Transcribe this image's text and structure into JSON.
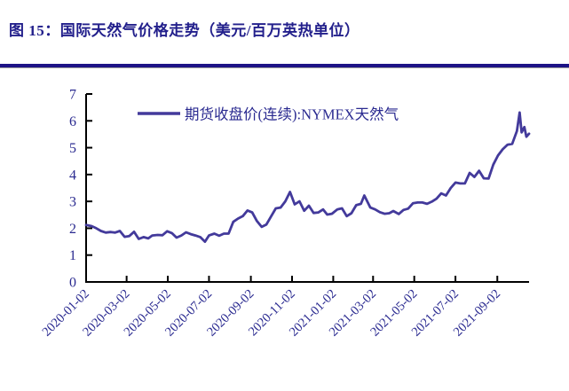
{
  "title": "图 15：国际天然气价格走势（美元/百万英热单位）",
  "colors": {
    "title_text": "#23208c",
    "divider": "#1d1386",
    "axis": "#000000",
    "tick_label": "#2a2a90",
    "series_line": "#433a9b"
  },
  "chart_data": {
    "type": "line",
    "title": "国际天然气价格走势（美元/百万英热单位）",
    "legend_position": "top",
    "grid": false,
    "ylim": [
      0,
      7
    ],
    "yticks": [
      0,
      1,
      2,
      3,
      4,
      5,
      6,
      7
    ],
    "xtick_labels": [
      "2020-01-02",
      "2020-03-02",
      "2020-05-02",
      "2020-07-02",
      "2020-09-02",
      "2020-11-02",
      "2021-01-02",
      "2021-03-02",
      "2021-05-02",
      "2021-07-02",
      "2021-09-02"
    ],
    "series": [
      {
        "name": "期货收盘价(连续):NYMEX天然气",
        "color": "#433a9b",
        "x": [
          "2020-01-02",
          "2020-01-10",
          "2020-01-17",
          "2020-01-24",
          "2020-01-31",
          "2020-02-07",
          "2020-02-14",
          "2020-02-21",
          "2020-02-28",
          "2020-03-06",
          "2020-03-13",
          "2020-03-20",
          "2020-03-27",
          "2020-04-03",
          "2020-04-09",
          "2020-04-17",
          "2020-04-24",
          "2020-05-01",
          "2020-05-08",
          "2020-05-15",
          "2020-05-22",
          "2020-05-29",
          "2020-06-05",
          "2020-06-12",
          "2020-06-19",
          "2020-06-26",
          "2020-07-02",
          "2020-07-10",
          "2020-07-17",
          "2020-07-24",
          "2020-07-31",
          "2020-08-07",
          "2020-08-14",
          "2020-08-21",
          "2020-08-28",
          "2020-09-04",
          "2020-09-11",
          "2020-09-18",
          "2020-09-25",
          "2020-10-02",
          "2020-10-09",
          "2020-10-16",
          "2020-10-23",
          "2020-10-30",
          "2020-11-06",
          "2020-11-13",
          "2020-11-20",
          "2020-11-27",
          "2020-12-04",
          "2020-12-11",
          "2020-12-18",
          "2020-12-24",
          "2020-12-31",
          "2021-01-08",
          "2021-01-15",
          "2021-01-22",
          "2021-01-29",
          "2021-02-05",
          "2021-02-12",
          "2021-02-17",
          "2021-02-26",
          "2021-03-05",
          "2021-03-12",
          "2021-03-19",
          "2021-03-26",
          "2021-04-01",
          "2021-04-09",
          "2021-04-16",
          "2021-04-23",
          "2021-04-30",
          "2021-05-07",
          "2021-05-14",
          "2021-05-21",
          "2021-05-28",
          "2021-06-04",
          "2021-06-11",
          "2021-06-18",
          "2021-06-25",
          "2021-07-02",
          "2021-07-09",
          "2021-07-16",
          "2021-07-23",
          "2021-07-30",
          "2021-08-06",
          "2021-08-13",
          "2021-08-20",
          "2021-08-27",
          "2021-09-03",
          "2021-09-10",
          "2021-09-17",
          "2021-09-24",
          "2021-10-01",
          "2021-10-05",
          "2021-10-08",
          "2021-10-12",
          "2021-10-15",
          "2021-10-19"
        ],
        "values": [
          2.12,
          2.08,
          2.0,
          1.9,
          1.84,
          1.86,
          1.84,
          1.9,
          1.68,
          1.71,
          1.87,
          1.6,
          1.67,
          1.62,
          1.73,
          1.75,
          1.74,
          1.89,
          1.82,
          1.65,
          1.73,
          1.85,
          1.78,
          1.73,
          1.67,
          1.5,
          1.73,
          1.8,
          1.72,
          1.8,
          1.8,
          2.24,
          2.36,
          2.45,
          2.66,
          2.59,
          2.27,
          2.05,
          2.14,
          2.44,
          2.74,
          2.77,
          3.0,
          3.35,
          2.89,
          3.0,
          2.65,
          2.84,
          2.57,
          2.59,
          2.7,
          2.51,
          2.54,
          2.7,
          2.74,
          2.45,
          2.56,
          2.86,
          2.91,
          3.22,
          2.77,
          2.7,
          2.6,
          2.54,
          2.56,
          2.64,
          2.53,
          2.68,
          2.73,
          2.93,
          2.96,
          2.96,
          2.91,
          2.99,
          3.1,
          3.3,
          3.22,
          3.5,
          3.7,
          3.67,
          3.67,
          4.06,
          3.91,
          4.14,
          3.86,
          3.85,
          4.37,
          4.71,
          4.94,
          5.11,
          5.14,
          5.62,
          6.31,
          5.57,
          5.77,
          5.41,
          5.52
        ]
      }
    ]
  }
}
